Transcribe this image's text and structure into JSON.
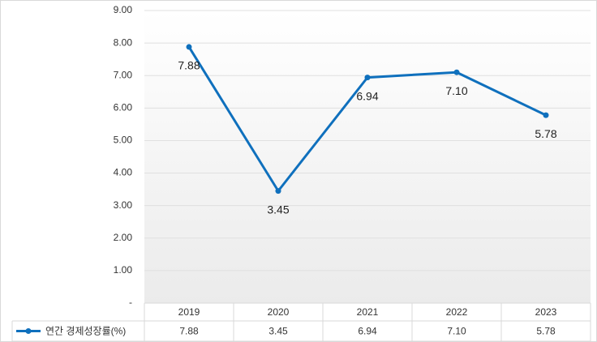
{
  "chart_data": {
    "type": "line",
    "categories": [
      "2019",
      "2020",
      "2021",
      "2022",
      "2023"
    ],
    "series": [
      {
        "name": "연간 경제성장률(%)",
        "color": "#0f70bd",
        "values": [
          7.88,
          3.45,
          6.94,
          7.1,
          5.78
        ],
        "value_labels": [
          "7.88",
          "3.45",
          "6.94",
          "7.10",
          "5.78"
        ]
      }
    ],
    "ylim": [
      0,
      9
    ],
    "yticks": [
      {
        "value": 0,
        "label": "-"
      },
      {
        "value": 1,
        "label": "1.00"
      },
      {
        "value": 2,
        "label": "2.00"
      },
      {
        "value": 3,
        "label": "3.00"
      },
      {
        "value": 4,
        "label": "4.00"
      },
      {
        "value": 5,
        "label": "5.00"
      },
      {
        "value": 6,
        "label": "6.00"
      },
      {
        "value": 7,
        "label": "7.00"
      },
      {
        "value": 8,
        "label": "8.00"
      },
      {
        "value": 9,
        "label": "9.00"
      }
    ],
    "grid": true
  }
}
